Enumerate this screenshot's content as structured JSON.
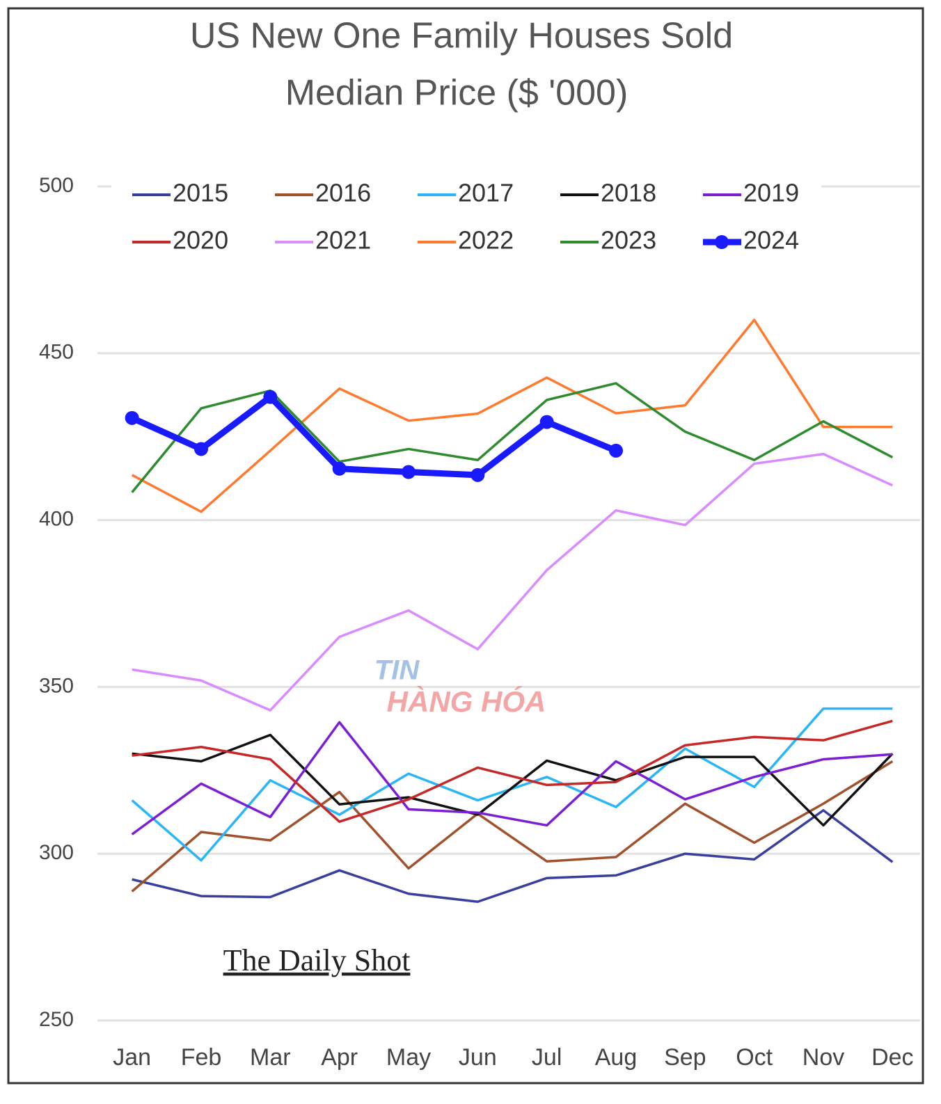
{
  "chart_data": {
    "type": "line",
    "title": [
      "US New One Family Houses Sold",
      "Median Price ($ '000)"
    ],
    "categories": [
      "Jan",
      "Feb",
      "Mar",
      "Apr",
      "May",
      "Jun",
      "Jul",
      "Aug",
      "Sep",
      "Oct",
      "Nov",
      "Dec"
    ],
    "ylim": [
      250,
      500
    ],
    "yticks": [
      250,
      300,
      350,
      400,
      450,
      500
    ],
    "grid": true,
    "series": [
      {
        "name": "2015",
        "color": "#3a3f9e",
        "values": [
          292.3,
          287.3,
          287,
          295,
          288,
          285.6,
          292.7,
          293.5,
          300,
          298.3,
          313,
          297.5
        ]
      },
      {
        "name": "2016",
        "color": "#a0522d",
        "values": [
          288.7,
          306.5,
          304,
          318.5,
          295.6,
          312,
          297.7,
          299,
          315,
          303.3,
          315,
          327.7
        ]
      },
      {
        "name": "2017",
        "color": "#29b6f6",
        "values": [
          316,
          298,
          322,
          311.7,
          324,
          316,
          323,
          314,
          331.5,
          320,
          343.5,
          343.5
        ]
      },
      {
        "name": "2018",
        "color": "#111111",
        "values": [
          330,
          327.7,
          335.6,
          314.8,
          316.9,
          311.7,
          327.9,
          322,
          329,
          329,
          308.5,
          330
        ]
      },
      {
        "name": "2019",
        "color": "#7b1fd2",
        "values": [
          305.8,
          321,
          311,
          339.4,
          313.3,
          312.3,
          308.5,
          327.7,
          316.3,
          323,
          328.3,
          329.8
        ]
      },
      {
        "name": "2020",
        "color": "#c62828",
        "values": [
          329.4,
          332,
          328.3,
          309.6,
          316.3,
          325.8,
          320.6,
          321.5,
          332.5,
          335,
          334,
          339.8
        ]
      },
      {
        "name": "2021",
        "color": "#d98cff",
        "values": [
          355.2,
          351.9,
          343,
          365,
          372.9,
          361.3,
          385,
          402.9,
          398.5,
          416.9,
          419.8,
          410.4
        ]
      },
      {
        "name": "2022",
        "color": "#ff7a2f",
        "values": [
          413.5,
          402.5,
          420.8,
          439.4,
          429.8,
          431.9,
          442.7,
          432,
          434.4,
          460,
          427.9,
          427.9
        ]
      },
      {
        "name": "2023",
        "color": "#2e8b2e",
        "values": [
          408.3,
          433.5,
          438.8,
          417.5,
          421.3,
          418,
          436,
          441,
          426.5,
          418,
          429.6,
          418.8
        ]
      },
      {
        "name": "2024",
        "color": "#1a1aff",
        "marker": true,
        "values": [
          430.6,
          421.3,
          436.9,
          415.4,
          414.4,
          413.5,
          429.4,
          420.8,
          null,
          null,
          null,
          null
        ]
      }
    ],
    "source": "The Daily Shot",
    "watermark": [
      "TIN",
      "HÀNG HÓA"
    ]
  }
}
